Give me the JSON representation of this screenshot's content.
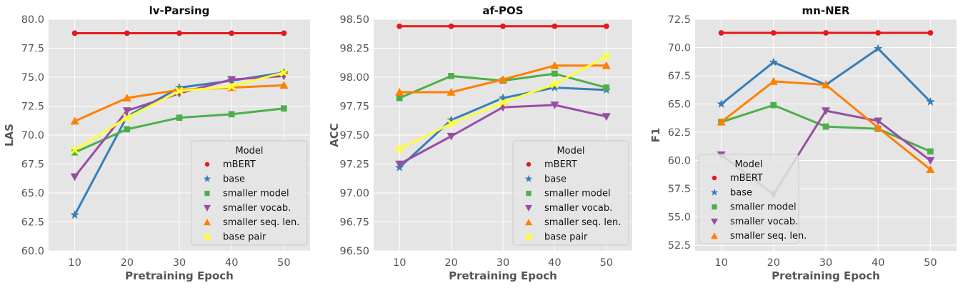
{
  "colors": {
    "mBERT": "#e41a1c",
    "base": "#377eb8",
    "smaller model": "#4daf4a",
    "smaller vocab.": "#984ea3",
    "smaller seq. len.": "#ff7f00",
    "base pair": "#ffff33",
    "background": "#e5e5e5",
    "grid": "#ffffff"
  },
  "chart_data": [
    {
      "type": "line",
      "title": "lv-Parsing",
      "xlabel": "Pretraining Epoch",
      "ylabel": "LAS",
      "x": [
        10,
        20,
        30,
        40,
        50
      ],
      "xlim": [
        5,
        55
      ],
      "ylim": [
        60.0,
        80.0
      ],
      "yticks": [
        "60.0",
        "62.5",
        "65.0",
        "67.5",
        "70.0",
        "72.5",
        "75.0",
        "77.5",
        "80.0"
      ],
      "xticks": [
        "10",
        "20",
        "30",
        "40",
        "50"
      ],
      "grid": true,
      "legend_title": "Model",
      "legend_position": "lower-right",
      "series": [
        {
          "name": "mBERT",
          "marker": "circle",
          "values": [
            78.8,
            78.8,
            78.8,
            78.8,
            78.8
          ]
        },
        {
          "name": "base",
          "marker": "star",
          "values": [
            63.1,
            71.6,
            74.1,
            74.7,
            75.4
          ]
        },
        {
          "name": "smaller model",
          "marker": "square",
          "values": [
            68.5,
            70.5,
            71.5,
            71.8,
            72.3
          ]
        },
        {
          "name": "smaller vocab.",
          "marker": "triangle-down",
          "values": [
            66.4,
            72.1,
            73.6,
            74.8,
            75.1
          ]
        },
        {
          "name": "smaller seq. len.",
          "marker": "triangle-up",
          "values": [
            71.2,
            73.2,
            73.9,
            74.1,
            74.3
          ]
        },
        {
          "name": "base pair",
          "marker": "x",
          "values": [
            68.7,
            71.5,
            73.8,
            74.2,
            75.4
          ]
        }
      ]
    },
    {
      "type": "line",
      "title": "af-POS",
      "xlabel": "Pretraining Epoch",
      "ylabel": "ACC",
      "x": [
        10,
        20,
        30,
        40,
        50
      ],
      "xlim": [
        5,
        55
      ],
      "ylim": [
        96.5,
        98.5
      ],
      "yticks": [
        "96.50",
        "96.75",
        "97.00",
        "97.25",
        "97.50",
        "97.75",
        "98.00",
        "98.25",
        "98.50"
      ],
      "xticks": [
        "10",
        "20",
        "30",
        "40",
        "50"
      ],
      "grid": true,
      "legend_title": "Model",
      "legend_position": "lower-right",
      "series": [
        {
          "name": "mBERT",
          "marker": "circle",
          "values": [
            98.44,
            98.44,
            98.44,
            98.44,
            98.44
          ]
        },
        {
          "name": "base",
          "marker": "star",
          "values": [
            97.22,
            97.63,
            97.82,
            97.91,
            97.89
          ]
        },
        {
          "name": "smaller model",
          "marker": "square",
          "values": [
            97.82,
            98.01,
            97.97,
            98.03,
            97.91
          ]
        },
        {
          "name": "smaller vocab.",
          "marker": "triangle-down",
          "values": [
            97.25,
            97.49,
            97.74,
            97.76,
            97.66
          ]
        },
        {
          "name": "smaller seq. len.",
          "marker": "triangle-up",
          "values": [
            97.87,
            97.87,
            97.98,
            98.1,
            98.1
          ]
        },
        {
          "name": "base pair",
          "marker": "x",
          "values": [
            97.38,
            97.6,
            97.78,
            97.94,
            98.18
          ]
        }
      ]
    },
    {
      "type": "line",
      "title": "mn-NER",
      "xlabel": "Pretraining Epoch",
      "ylabel": "F1",
      "x": [
        10,
        20,
        30,
        40,
        50
      ],
      "xlim": [
        5,
        55
      ],
      "ylim": [
        52.0,
        72.5
      ],
      "yticks": [
        "52.5",
        "55.0",
        "57.5",
        "60.0",
        "62.5",
        "65.0",
        "67.5",
        "70.0",
        "72.5"
      ],
      "xticks": [
        "10",
        "20",
        "30",
        "40",
        "50"
      ],
      "grid": true,
      "legend_title": "Model",
      "legend_position": "lower-left",
      "series": [
        {
          "name": "mBERT",
          "marker": "circle",
          "values": [
            71.3,
            71.3,
            71.3,
            71.3,
            71.3
          ]
        },
        {
          "name": "base",
          "marker": "star",
          "values": [
            65.0,
            68.7,
            66.7,
            69.9,
            65.2
          ]
        },
        {
          "name": "smaller model",
          "marker": "square",
          "values": [
            63.4,
            64.9,
            63.0,
            62.8,
            60.8
          ]
        },
        {
          "name": "smaller vocab.",
          "marker": "triangle-down",
          "values": [
            60.5,
            57.0,
            64.4,
            63.5,
            60.0
          ]
        },
        {
          "name": "smaller seq. len.",
          "marker": "triangle-up",
          "values": [
            63.4,
            67.0,
            66.7,
            62.9,
            59.2
          ]
        }
      ]
    }
  ]
}
